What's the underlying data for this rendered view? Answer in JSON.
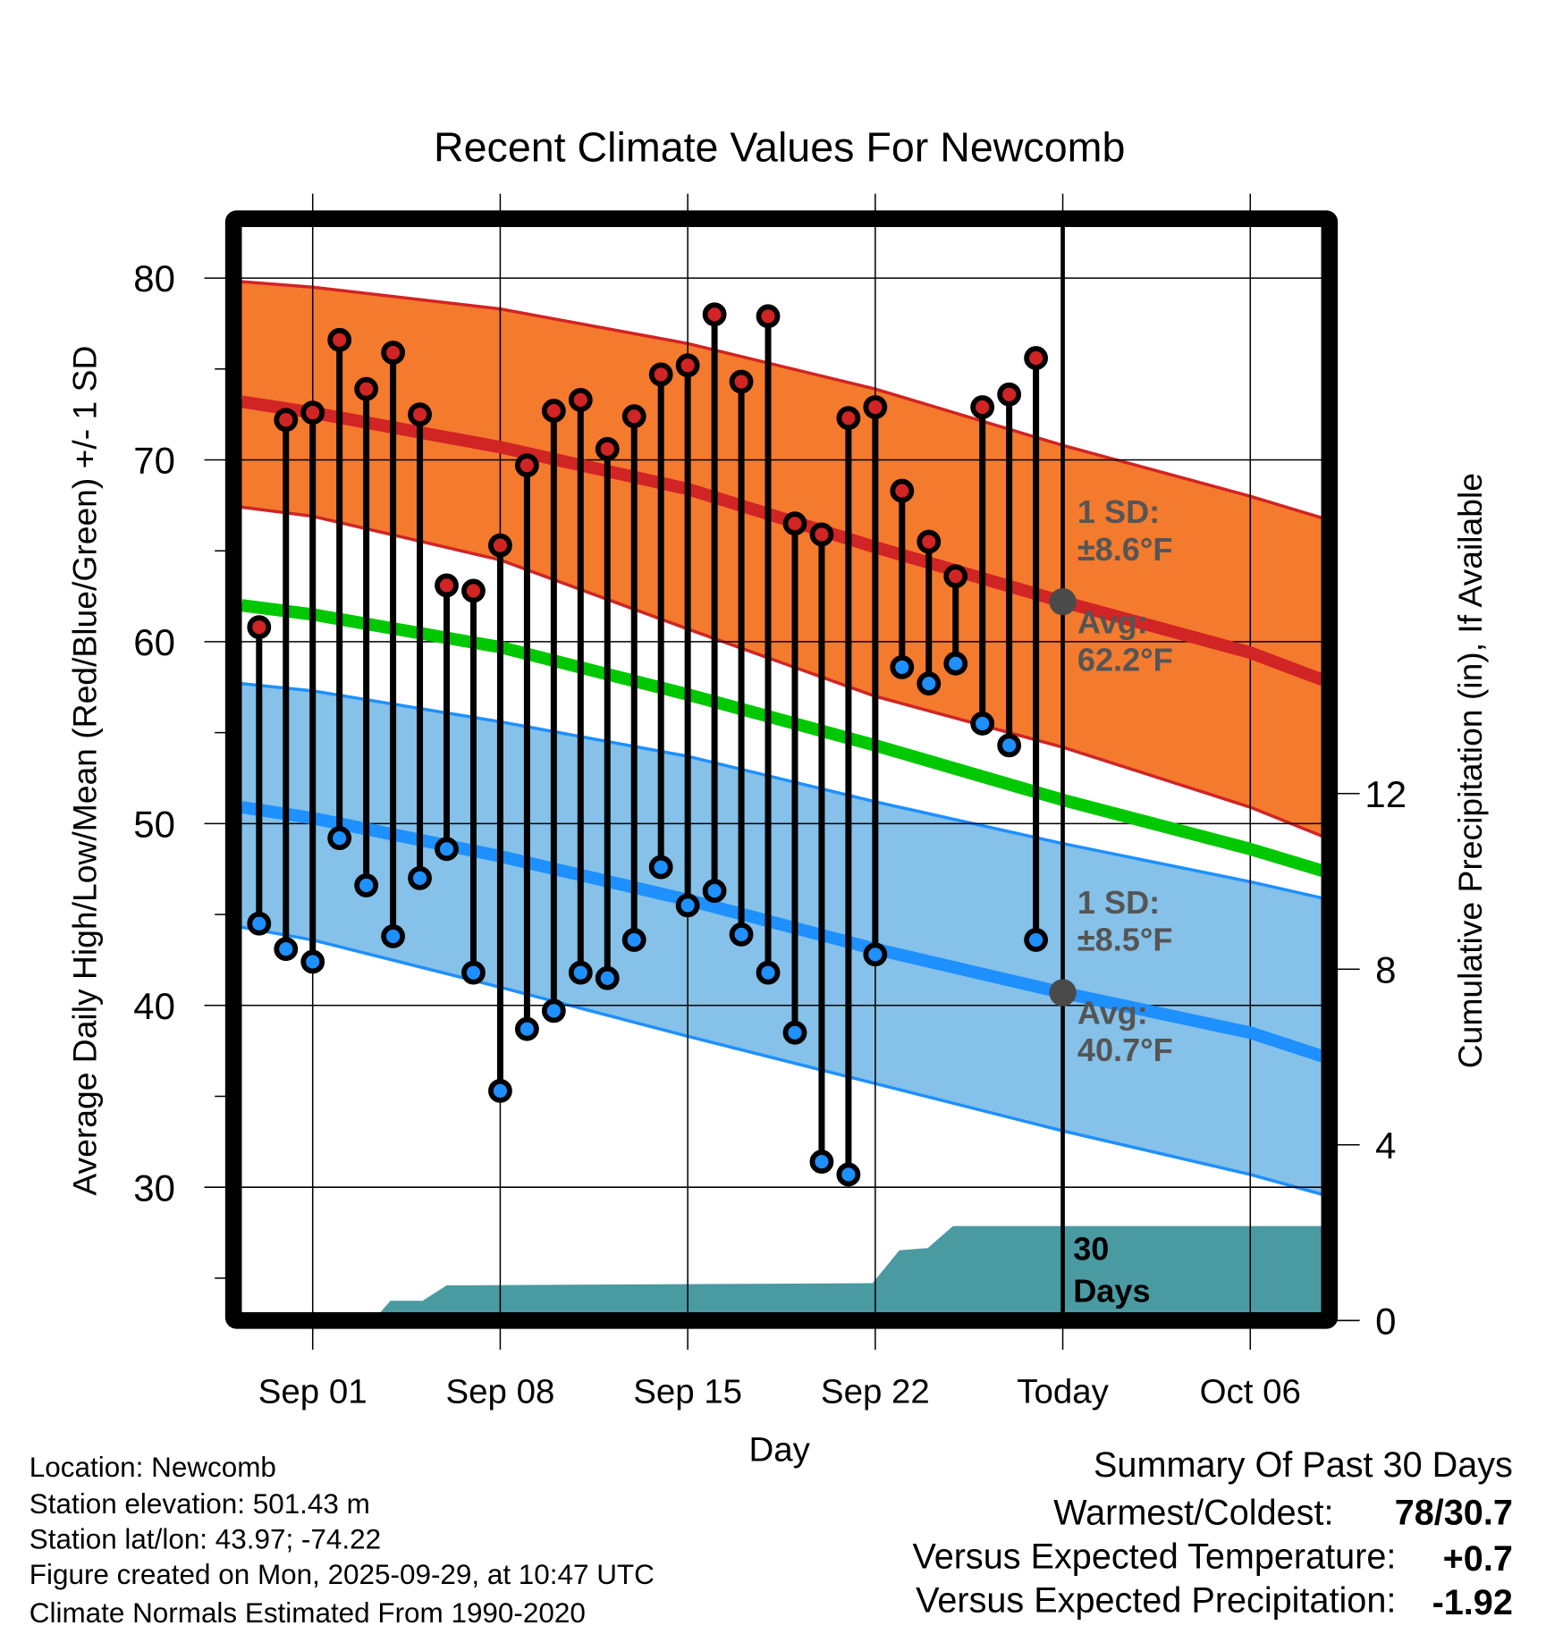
{
  "chart_data": {
    "type": "line",
    "title": "Recent Climate Values For Newcomb",
    "xlabel": "Day",
    "ylabel": "Average Daily High/Low/Mean (Red/Blue/Green) +/- 1 SD",
    "y2label": "Cumulative Precipitation (in), If Available",
    "ylim": [
      23,
      84
    ],
    "y2lim": [
      0,
      14.5
    ],
    "yticks": [
      "30",
      "40",
      "50",
      "60",
      "70",
      "80"
    ],
    "y2ticks": [
      "0",
      "4",
      "8",
      "12"
    ],
    "xlim_days_from_sep01": [
      -2.65,
      37.7
    ],
    "xticks": [
      {
        "label": "Sep 01",
        "day": 0
      },
      {
        "label": "Sep 08",
        "day": 7
      },
      {
        "label": "Sep 15",
        "day": 14
      },
      {
        "label": "Sep 22",
        "day": 21
      },
      {
        "label": "Today",
        "day": 28
      },
      {
        "label": "Oct 06",
        "day": 35
      }
    ],
    "today_day": 28,
    "observed": {
      "start_day": -2,
      "highs": [
        60.8,
        72.2,
        72.6,
        76.6,
        73.9,
        75.9,
        72.5,
        63.1,
        62.8,
        65.3,
        69.7,
        72.7,
        73.3,
        70.6,
        72.4,
        74.7,
        75.2,
        78.0,
        74.3,
        77.9,
        66.5,
        65.9,
        72.3,
        72.9,
        68.3,
        65.5,
        63.6,
        72.9,
        73.6,
        75.6
      ],
      "lows": [
        44.5,
        43.1,
        42.4,
        49.2,
        46.6,
        43.8,
        47.0,
        48.6,
        41.8,
        35.3,
        38.7,
        39.7,
        41.8,
        41.5,
        43.6,
        47.6,
        45.5,
        46.3,
        43.9,
        41.8,
        38.5,
        31.4,
        30.7,
        42.8,
        58.6,
        57.7,
        58.8,
        55.5,
        54.3,
        43.6
      ]
    },
    "normals": {
      "days": [
        -2.65,
        0,
        7,
        14,
        21,
        28,
        35,
        37.7
      ],
      "high_mean": [
        73.2,
        72.6,
        70.7,
        68.4,
        65.2,
        62.2,
        59.4,
        57.9
      ],
      "high_upper": [
        79.8,
        79.5,
        78.3,
        76.4,
        73.9,
        70.8,
        68.0,
        66.8
      ],
      "high_lower": [
        67.4,
        66.9,
        64.5,
        60.7,
        57.0,
        54.2,
        50.9,
        49.3
      ],
      "mean": [
        62.0,
        61.5,
        59.7,
        57.1,
        54.3,
        51.3,
        48.6,
        47.4
      ],
      "low_mean": [
        50.9,
        50.3,
        48.2,
        45.8,
        43.1,
        40.7,
        38.5,
        37.2
      ],
      "low_upper": [
        57.7,
        57.3,
        55.6,
        53.7,
        51.2,
        48.9,
        46.8,
        45.9
      ],
      "low_lower": [
        44.3,
        43.6,
        41.0,
        38.3,
        35.7,
        33.1,
        30.7,
        29.6
      ]
    },
    "precip_cumulative": {
      "days": [
        -2.65,
        2.26,
        2.9,
        4.1,
        5.0,
        20.9,
        21.9,
        22.96,
        23.9,
        37.7
      ],
      "values": [
        0,
        0,
        0.45,
        0.45,
        0.8,
        0.85,
        1.6,
        1.65,
        2.15,
        2.15
      ]
    },
    "annotations": {
      "high_sd_label": "1 SD:",
      "high_sd_value": "±8.6°F",
      "high_avg_label": "Avg:",
      "high_avg_value": "62.2°F",
      "high_avg": 62.2,
      "low_sd_label": "1 SD:",
      "low_sd_value": "±8.5°F",
      "low_avg_label": "Avg:",
      "low_avg_value": "40.7°F",
      "low_avg": 40.7,
      "precip_label_1": "30",
      "precip_label_2": "Days"
    },
    "colors": {
      "high_band": "#f47a2e",
      "high_line": "#d12424",
      "mean_line": "#00c800",
      "low_band": "#85c1e8",
      "low_line": "#1e90ff",
      "precip": "#4a9aa2",
      "annotation": "#555555"
    }
  },
  "footer": {
    "lines": [
      "Location: Newcomb",
      "Station elevation: 501.43 m",
      "Station lat/lon: 43.97; -74.22",
      "Figure created on Mon, 2025-09-29, at 10:47 UTC",
      "Climate Normals Estimated From 1990-2020"
    ]
  },
  "summary": {
    "title": "Summary Of Past 30 Days",
    "warmest_label": "Warmest/Coldest:",
    "warmest_value": "78/30.7",
    "temp_label": "Versus Expected Temperature:",
    "temp_value": "+0.7",
    "temp_color": "#d12424",
    "precip_label": "Versus Expected Precipitation:",
    "precip_value": "-1.92",
    "precip_color": "#a0522d"
  }
}
